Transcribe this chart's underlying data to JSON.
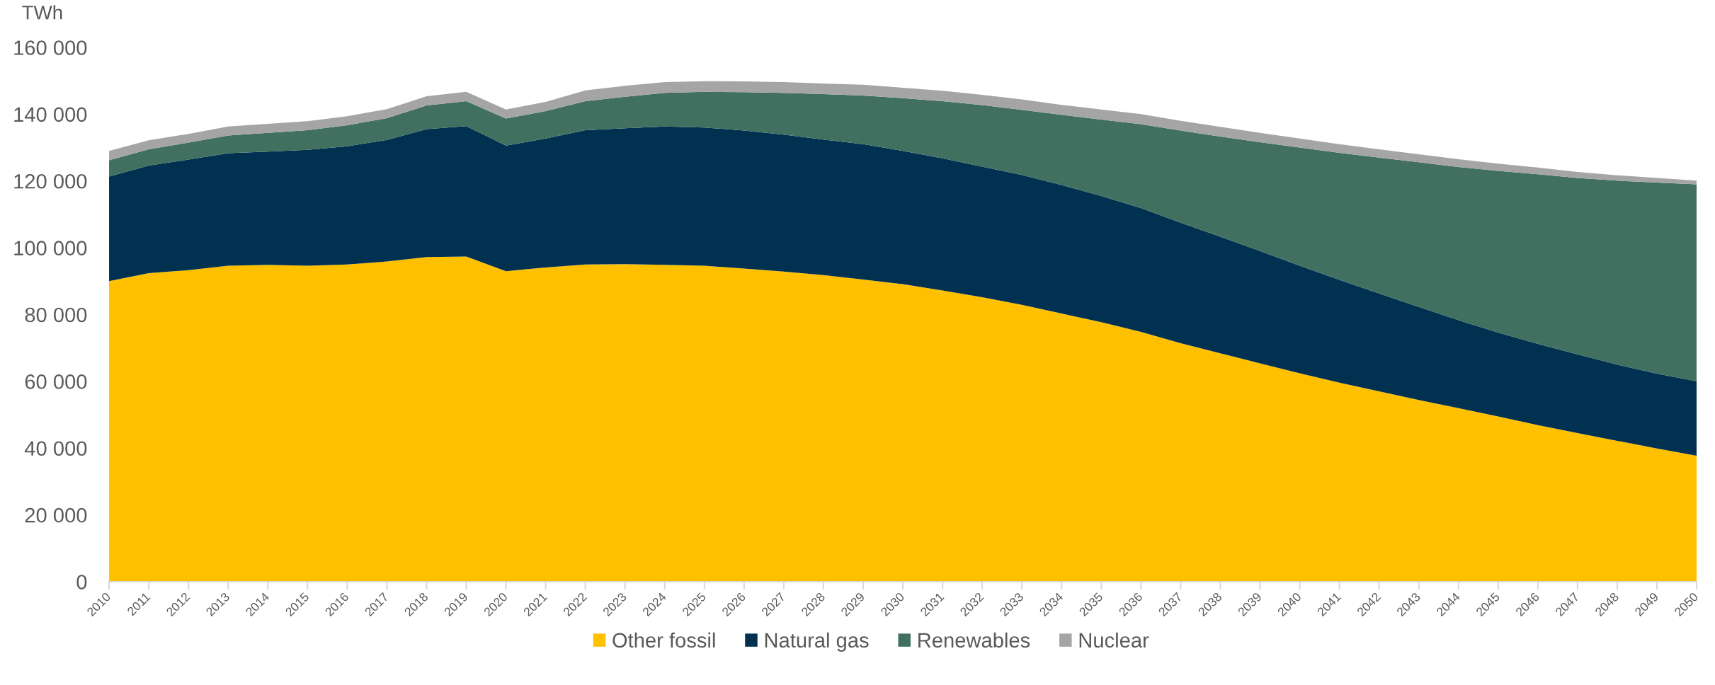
{
  "chart_data": {
    "type": "area",
    "stacked": true,
    "ylabel": "TWh",
    "legend": "bottom",
    "categories": [
      "2010",
      "2011",
      "2012",
      "2013",
      "2014",
      "2015",
      "2016",
      "2017",
      "2018",
      "2019",
      "2020",
      "2021",
      "2022",
      "2023",
      "2024",
      "2025",
      "2026",
      "2027",
      "2028",
      "2029",
      "2030",
      "2031",
      "2032",
      "2033",
      "2034",
      "2035",
      "2036",
      "2037",
      "2038",
      "2039",
      "2040",
      "2041",
      "2042",
      "2043",
      "2044",
      "2045",
      "2046",
      "2047",
      "2048",
      "2049",
      "2050"
    ],
    "series": [
      {
        "name": "Other fossil",
        "color": "#ffc000",
        "values": [
          90000,
          92400,
          93300,
          94600,
          94900,
          94600,
          95000,
          95900,
          97200,
          97400,
          93000,
          94100,
          95000,
          95100,
          94900,
          94600,
          93800,
          92900,
          91800,
          90500,
          89100,
          87200,
          85200,
          82900,
          80300,
          77700,
          74800,
          71400,
          68400,
          65400,
          62400,
          59600,
          57000,
          54400,
          52000,
          49500,
          46900,
          44500,
          42200,
          39900,
          37700
        ]
      },
      {
        "name": "Natural gas",
        "color": "#003150",
        "values": [
          31300,
          32200,
          33100,
          33700,
          33900,
          34700,
          35400,
          36400,
          38300,
          39000,
          37600,
          38600,
          40200,
          40700,
          41400,
          41400,
          41300,
          41000,
          40600,
          40500,
          39900,
          39600,
          39100,
          38900,
          38500,
          37800,
          37100,
          36100,
          34900,
          33600,
          32200,
          30800,
          29300,
          27900,
          26300,
          25100,
          24300,
          23600,
          22800,
          22400,
          22300
        ]
      },
      {
        "name": "Renewables",
        "color": "#417060",
        "values": [
          4900,
          4900,
          5100,
          5300,
          5600,
          5900,
          6300,
          6500,
          7100,
          7500,
          8100,
          8200,
          8700,
          9400,
          10100,
          10700,
          11500,
          12500,
          13600,
          14600,
          15800,
          17100,
          18400,
          19500,
          21000,
          22900,
          25100,
          27600,
          30000,
          32600,
          35400,
          38000,
          40700,
          43300,
          45900,
          48400,
          50800,
          52800,
          55100,
          57200,
          59000
        ]
      },
      {
        "name": "Nuclear",
        "color": "#a5a5a5",
        "values": [
          2800,
          2700,
          2600,
          2700,
          2700,
          2700,
          2700,
          2700,
          2800,
          2800,
          2700,
          2800,
          3200,
          3300,
          3200,
          3200,
          3200,
          3200,
          3200,
          3200,
          3100,
          3100,
          3100,
          3100,
          3000,
          3000,
          3000,
          2900,
          2900,
          2800,
          2700,
          2600,
          2500,
          2400,
          2300,
          2200,
          2000,
          1800,
          1600,
          1400,
          1100
        ]
      }
    ],
    "ylim": [
      0,
      160000
    ],
    "yticks": [
      0,
      {
        "value": 20000,
        "label": "20 000"
      },
      {
        "value": 40000,
        "label": "40 000"
      },
      {
        "value": 60000,
        "label": "60 000"
      },
      {
        "value": 80000,
        "label": "80 000"
      },
      {
        "value": 100000,
        "label": "100 000"
      },
      {
        "value": 120000,
        "label": "120 000"
      },
      {
        "value": 140000,
        "label": "140 000"
      },
      {
        "value": 160000,
        "label": "160 000"
      }
    ]
  }
}
